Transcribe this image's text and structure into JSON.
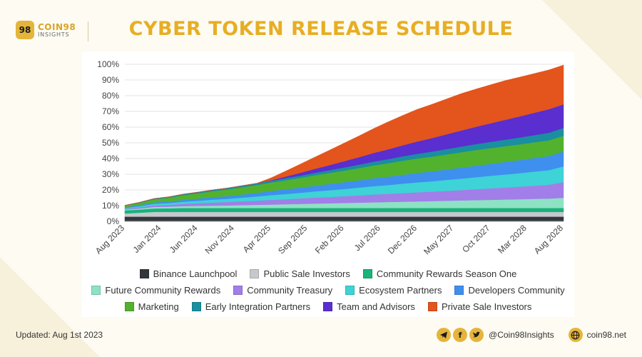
{
  "header": {
    "logo_badge": "98",
    "logo_name": "COIN98",
    "logo_sub": "INSIGHTS",
    "title": "CYBER TOKEN RELEASE SCHEDULE"
  },
  "footer": {
    "updated": "Updated: Aug 1st 2023",
    "handle": "@Coin98Insights",
    "website": "coin98.net",
    "icons": [
      "telegram-icon",
      "facebook-icon",
      "twitter-icon",
      "globe-icon"
    ]
  },
  "colors": {
    "title": "#e7ae24",
    "brand": "#e5b53b"
  },
  "chart_data": {
    "type": "area",
    "stacked": true,
    "x": [
      "Aug 2023",
      "Oct 2023",
      "Dec 2023",
      "Feb 2024",
      "Apr 2024",
      "Jun 2024",
      "Aug 2024",
      "Oct 2024",
      "Dec 2024",
      "Feb 2025",
      "Apr 2025",
      "Jun 2025",
      "Aug 2025",
      "Oct 2025",
      "Dec 2025",
      "Feb 2026",
      "Apr 2026",
      "Jun 2026",
      "Aug 2026",
      "Oct 2026",
      "Dec 2026",
      "Feb 2027",
      "Apr 2027",
      "Jun 2027",
      "Aug 2027",
      "Oct 2027",
      "Dec 2027",
      "Feb 2028",
      "Apr 2028",
      "Jun 2028",
      "Aug 2028"
    ],
    "x_tick_labels": [
      "Aug 2023",
      "Jan 2024",
      "Jun 2024",
      "Nov 2024",
      "Apr 2025",
      "Sep 2025",
      "Feb 2026",
      "Jul 2026",
      "Dec 2026",
      "May 2027",
      "Oct 2027",
      "Mar 2028",
      "Aug 2028"
    ],
    "y_tick_labels": [
      "0%",
      "10%",
      "20%",
      "30%",
      "40%",
      "50%",
      "60%",
      "70%",
      "80%",
      "90%",
      "100%"
    ],
    "ylim": [
      0,
      100
    ],
    "grid": true,
    "legend_position": "bottom",
    "series": [
      {
        "name": "Binance Launchpool",
        "color": "#33373c",
        "values": [
          3,
          3,
          3,
          3,
          3,
          3,
          3,
          3,
          3,
          3,
          3,
          3,
          3,
          3,
          3,
          3,
          3,
          3,
          3,
          3,
          3,
          3,
          3,
          3,
          3,
          3,
          3,
          3,
          3,
          3,
          3
        ]
      },
      {
        "name": "Public Sale Investors",
        "color": "#c5c9cd",
        "values": [
          2,
          2.5,
          3,
          3,
          3,
          3,
          3,
          3,
          3,
          3,
          3,
          3,
          3,
          3,
          3,
          3,
          3,
          3,
          3,
          3,
          3,
          3,
          3,
          3,
          3,
          3,
          3,
          3,
          3,
          3,
          3
        ]
      },
      {
        "name": "Community Rewards Season One",
        "color": "#1ab37a",
        "values": [
          2,
          2,
          2.2,
          2.3,
          2.5,
          2.5,
          2.5,
          2.5,
          2.5,
          2.5,
          2.5,
          2.5,
          2.5,
          2.5,
          2.5,
          2.5,
          2.5,
          2.5,
          2.5,
          2.5,
          2.5,
          2.5,
          2.5,
          2.5,
          2.5,
          2.5,
          2.5,
          2.5,
          2.5,
          2.5,
          2.5
        ]
      },
      {
        "name": "Future Community Rewards",
        "color": "#8de2c4",
        "values": [
          0.5,
          0.7,
          1,
          1,
          1.2,
          1.3,
          1.5,
          1.6,
          1.8,
          2,
          2.2,
          2.4,
          2.6,
          2.8,
          3,
          3.2,
          3.4,
          3.6,
          3.8,
          4,
          4.2,
          4.4,
          4.6,
          4.8,
          5,
          5.2,
          5.4,
          5.6,
          5.8,
          6,
          6.5
        ]
      },
      {
        "name": "Community Treasury",
        "color": "#a27ee8",
        "values": [
          0.5,
          0.7,
          1,
          1.2,
          1.5,
          1.8,
          2,
          2.2,
          2.5,
          2.7,
          3,
          3.2,
          3.5,
          3.8,
          4,
          4.3,
          4.6,
          5,
          5.2,
          5.5,
          5.8,
          6,
          6.3,
          6.6,
          7,
          7.3,
          7.6,
          8,
          8.4,
          8.8,
          10
        ]
      },
      {
        "name": "Ecosystem Partners",
        "color": "#3ed3d6",
        "values": [
          0.5,
          0.7,
          1,
          1.1,
          1.3,
          1.5,
          1.8,
          2,
          2.3,
          2.6,
          3,
          3.3,
          3.6,
          4,
          4.3,
          4.6,
          5,
          5.3,
          5.6,
          6,
          6.3,
          6.6,
          7,
          7.3,
          7.6,
          8,
          8.3,
          8.6,
          9,
          9.3,
          10
        ]
      },
      {
        "name": "Developers Community",
        "color": "#3f8fef",
        "values": [
          0.5,
          0.7,
          0.9,
          1,
          1.2,
          1.4,
          1.6,
          1.8,
          2,
          2.3,
          2.6,
          3,
          3.3,
          3.6,
          4,
          4.3,
          4.6,
          5,
          5.3,
          5.6,
          6,
          6.3,
          6.6,
          7,
          7.3,
          7.6,
          8,
          8.3,
          8.6,
          9,
          9.5
        ]
      },
      {
        "name": "Marketing",
        "color": "#52b22e",
        "values": [
          1,
          1.5,
          2,
          2.5,
          3,
          3.4,
          3.8,
          4.2,
          4.6,
          5,
          5.4,
          5.8,
          6.2,
          6.6,
          7,
          7.4,
          7.8,
          8.2,
          8.6,
          9,
          9.2,
          9.4,
          9.6,
          9.8,
          10,
          10,
          10,
          10,
          10,
          10,
          10
        ]
      },
      {
        "name": "Early Integration Partners",
        "color": "#1a8fa0",
        "values": [
          0.2,
          0.3,
          0.4,
          0.5,
          0.6,
          0.7,
          0.8,
          0.9,
          1,
          1.1,
          1.2,
          1.3,
          1.4,
          1.6,
          1.8,
          2,
          2.2,
          2.4,
          2.6,
          2.8,
          3,
          3.2,
          3.4,
          3.6,
          3.8,
          4,
          4.2,
          4.4,
          4.6,
          4.8,
          5
        ]
      },
      {
        "name": "Team and Advisors",
        "color": "#5a2ecf",
        "values": [
          0,
          0,
          0,
          0,
          0,
          0,
          0,
          0,
          0,
          0,
          0.3,
          1,
          1.8,
          2.5,
          3.2,
          4,
          4.7,
          5.5,
          6.2,
          7,
          7.8,
          8.6,
          9.4,
          10.2,
          11,
          11.8,
          12.6,
          13.4,
          14.2,
          15,
          15
        ]
      },
      {
        "name": "Private Sale Investors",
        "color": "#e3551c",
        "values": [
          0,
          0,
          0,
          0,
          0,
          0,
          0,
          0,
          0,
          0,
          1.5,
          3.5,
          5.5,
          7.5,
          9.5,
          11.5,
          13.5,
          15.5,
          17.5,
          19,
          20.5,
          21.5,
          22.5,
          23.5,
          24,
          24.5,
          25,
          25,
          25,
          25,
          25
        ]
      }
    ]
  }
}
